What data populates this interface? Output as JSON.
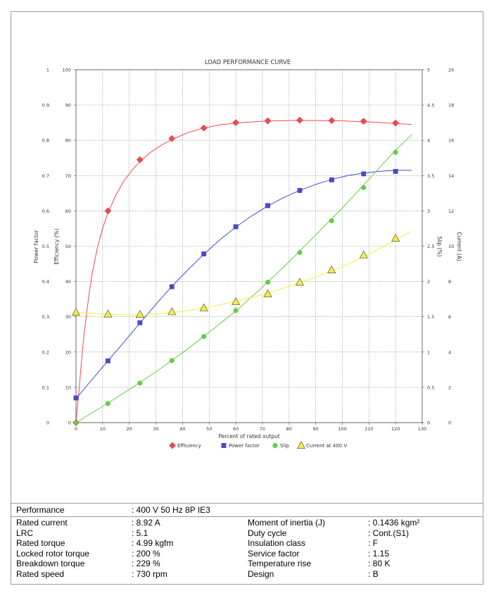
{
  "chart_data": {
    "type": "line",
    "title": "LOAD PERFORMANCE CURVE",
    "xlabel": "Percent of rated output",
    "xlim": [
      0,
      130
    ],
    "x_ticks": [
      "0",
      "10",
      "20",
      "30",
      "40",
      "50",
      "60",
      "70",
      "80",
      "90",
      "100",
      "110",
      "120",
      "130"
    ],
    "grid": true,
    "legend_placement": "bottom-center",
    "axes": {
      "power_factor": {
        "label": "Power factor",
        "side": "left-outer",
        "range": [
          0,
          1
        ],
        "ticks": [
          "0",
          "0.1",
          "0.2",
          "0.3",
          "0.4",
          "0.5",
          "0.6",
          "0.7",
          "0.8",
          "0.9",
          "1"
        ]
      },
      "efficiency": {
        "label": "Efficiency (%)",
        "side": "left-inner",
        "range": [
          0,
          100
        ],
        "ticks": [
          "0",
          "10",
          "20",
          "30",
          "40",
          "50",
          "60",
          "70",
          "80",
          "90",
          "100"
        ]
      },
      "slip": {
        "label": "Slip (%)",
        "side": "right-inner",
        "range": [
          0,
          5
        ],
        "ticks": [
          "0",
          "0.5",
          "1",
          "1.5",
          "2",
          "2.5",
          "3",
          "3.5",
          "4",
          "4.5",
          "5"
        ]
      },
      "current": {
        "label": "Current (A)",
        "side": "right-outer",
        "range": [
          0,
          20
        ],
        "ticks": [
          "0",
          "2",
          "4",
          "6",
          "8",
          "10",
          "12",
          "14",
          "16",
          "18",
          "20"
        ]
      }
    },
    "series": [
      {
        "name": "Efficiency",
        "axis": "efficiency",
        "color": "#f0484f",
        "marker": "diamond",
        "points": [
          [
            0,
            0
          ],
          [
            12,
            60
          ],
          [
            24,
            74.5
          ],
          [
            36,
            80.5
          ],
          [
            48,
            83.5
          ],
          [
            60,
            85
          ],
          [
            72,
            85.5
          ],
          [
            84,
            85.7
          ],
          [
            96,
            85.6
          ],
          [
            108,
            85.4
          ],
          [
            120,
            84.9
          ]
        ],
        "curve": [
          [
            0,
            0
          ],
          [
            1,
            8
          ],
          [
            2,
            17
          ],
          [
            3,
            25
          ],
          [
            4,
            31
          ],
          [
            5,
            37
          ],
          [
            6,
            42
          ],
          [
            8,
            49.5
          ],
          [
            10,
            55
          ],
          [
            12,
            59.5
          ],
          [
            15,
            64.5
          ],
          [
            18,
            68.5
          ],
          [
            21,
            71.5
          ],
          [
            24,
            74
          ],
          [
            28,
            76.6
          ],
          [
            32,
            78.6
          ],
          [
            36,
            80.2
          ],
          [
            42,
            82.2
          ],
          [
            48,
            83.5
          ],
          [
            54,
            84.4
          ],
          [
            60,
            84.9
          ],
          [
            70,
            85.4
          ],
          [
            80,
            85.6
          ],
          [
            90,
            85.6
          ],
          [
            100,
            85.5
          ],
          [
            110,
            85.2
          ],
          [
            120,
            84.8
          ],
          [
            126,
            84.5
          ]
        ]
      },
      {
        "name": "Power factor",
        "axis": "power_factor",
        "color": "#4a4ac8",
        "marker": "square",
        "points": [
          [
            0,
            0.07
          ],
          [
            12,
            0.175
          ],
          [
            24,
            0.283
          ],
          [
            36,
            0.385
          ],
          [
            48,
            0.478
          ],
          [
            60,
            0.555
          ],
          [
            72,
            0.615
          ],
          [
            84,
            0.658
          ],
          [
            96,
            0.688
          ],
          [
            108,
            0.705
          ],
          [
            120,
            0.712
          ]
        ],
        "curve": [
          [
            0,
            0.068
          ],
          [
            6,
            0.122
          ],
          [
            12,
            0.175
          ],
          [
            18,
            0.228
          ],
          [
            24,
            0.282
          ],
          [
            30,
            0.335
          ],
          [
            36,
            0.386
          ],
          [
            42,
            0.433
          ],
          [
            48,
            0.477
          ],
          [
            54,
            0.518
          ],
          [
            60,
            0.554
          ],
          [
            66,
            0.586
          ],
          [
            72,
            0.614
          ],
          [
            78,
            0.638
          ],
          [
            84,
            0.658
          ],
          [
            90,
            0.675
          ],
          [
            96,
            0.689
          ],
          [
            102,
            0.7
          ],
          [
            108,
            0.707
          ],
          [
            114,
            0.712
          ],
          [
            120,
            0.715
          ],
          [
            126,
            0.715
          ]
        ]
      },
      {
        "name": "Slip",
        "axis": "slip",
        "color": "#60d040",
        "marker": "circle",
        "points": [
          [
            0,
            0
          ],
          [
            12,
            0.27
          ],
          [
            24,
            0.56
          ],
          [
            36,
            0.88
          ],
          [
            48,
            1.22
          ],
          [
            60,
            1.59
          ],
          [
            72,
            1.99
          ],
          [
            84,
            2.41
          ],
          [
            96,
            2.86
          ],
          [
            108,
            3.33
          ],
          [
            120,
            3.83
          ]
        ],
        "curve": [
          [
            0,
            0
          ],
          [
            10,
            0.23
          ],
          [
            20,
            0.47
          ],
          [
            30,
            0.72
          ],
          [
            40,
            0.99
          ],
          [
            50,
            1.28
          ],
          [
            60,
            1.58
          ],
          [
            70,
            1.92
          ],
          [
            80,
            2.28
          ],
          [
            90,
            2.66
          ],
          [
            100,
            3.04
          ],
          [
            110,
            3.45
          ],
          [
            120,
            3.86
          ],
          [
            126,
            4.08
          ]
        ]
      },
      {
        "name": "Current at 400 V",
        "axis": "current",
        "color": "#f2ef40",
        "marker": "triangle",
        "points": [
          [
            0,
            6.25
          ],
          [
            12,
            6.15
          ],
          [
            24,
            6.13
          ],
          [
            36,
            6.28
          ],
          [
            48,
            6.5
          ],
          [
            60,
            6.85
          ],
          [
            72,
            7.3
          ],
          [
            84,
            7.95
          ],
          [
            96,
            8.65
          ],
          [
            108,
            9.5
          ],
          [
            120,
            10.45
          ]
        ],
        "curve": [
          [
            0,
            6.25
          ],
          [
            10,
            6.16
          ],
          [
            20,
            6.1
          ],
          [
            30,
            6.15
          ],
          [
            40,
            6.3
          ],
          [
            50,
            6.55
          ],
          [
            60,
            6.87
          ],
          [
            70,
            7.25
          ],
          [
            80,
            7.72
          ],
          [
            90,
            8.25
          ],
          [
            100,
            8.85
          ],
          [
            110,
            9.55
          ],
          [
            120,
            10.35
          ],
          [
            126,
            10.85
          ]
        ]
      }
    ]
  },
  "performance": {
    "header_label": "Performance",
    "header_value": ": 400 V 50 Hz 8P IE3",
    "left": [
      {
        "label": "Rated current",
        "value": ": 8.92 A"
      },
      {
        "label": "LRC",
        "value": ": 5.1"
      },
      {
        "label": "Rated torque",
        "value": ": 4.99 kgfm"
      },
      {
        "label": "Locked rotor torque",
        "value": ": 200 %"
      },
      {
        "label": "Breakdown torque",
        "value": ": 229 %"
      },
      {
        "label": "Rated speed",
        "value": ": 730 rpm"
      }
    ],
    "right": [
      {
        "label": "Moment of inertia (J)",
        "value": ": 0.1436 kgm²"
      },
      {
        "label": "Duty cycle",
        "value": ": Cont.(S1)"
      },
      {
        "label": "Insulation class",
        "value": ": F"
      },
      {
        "label": "Service factor",
        "value": ": 1.15"
      },
      {
        "label": "Temperature rise",
        "value": ": 80 K"
      },
      {
        "label": "Design",
        "value": ": B"
      }
    ]
  }
}
